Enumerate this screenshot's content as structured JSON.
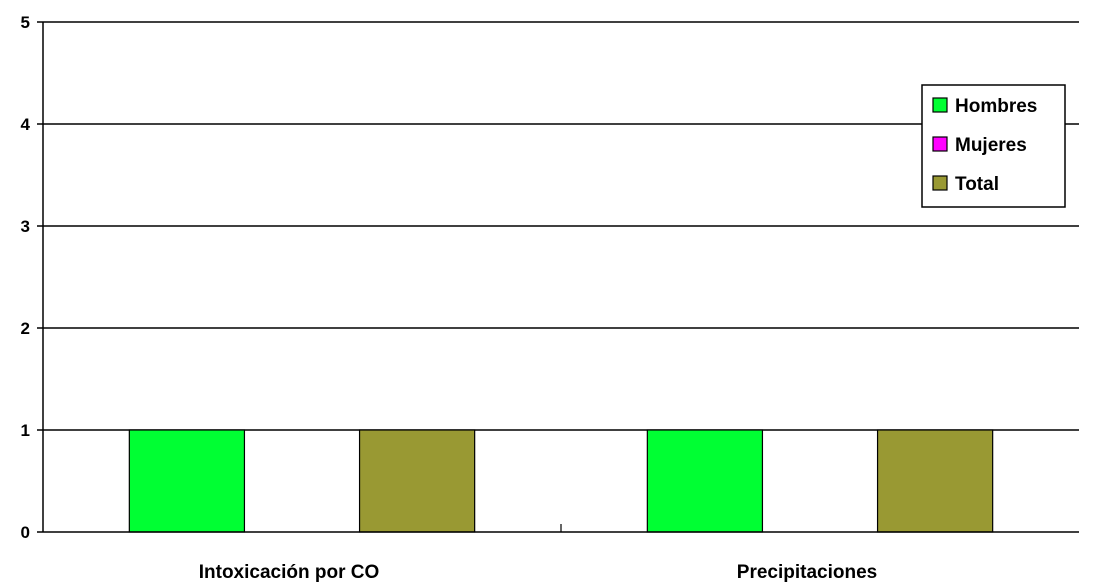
{
  "chart_data": {
    "type": "bar",
    "title": "",
    "xlabel": "",
    "ylabel": "",
    "categories": [
      "Intoxicación por CO",
      "Precipitaciones"
    ],
    "series": [
      {
        "name": "Hombres",
        "values": [
          1,
          1
        ],
        "color": "#00ff33"
      },
      {
        "name": "Mujeres",
        "values": [
          0,
          0
        ],
        "color": "#ff00ff"
      },
      {
        "name": "Total",
        "values": [
          1,
          1
        ],
        "color": "#999933"
      }
    ],
    "ylim": [
      0,
      5
    ],
    "yticks": [
      "0",
      "1",
      "2",
      "3",
      "4",
      "5"
    ],
    "grid": true,
    "legend_position": "top-right"
  }
}
